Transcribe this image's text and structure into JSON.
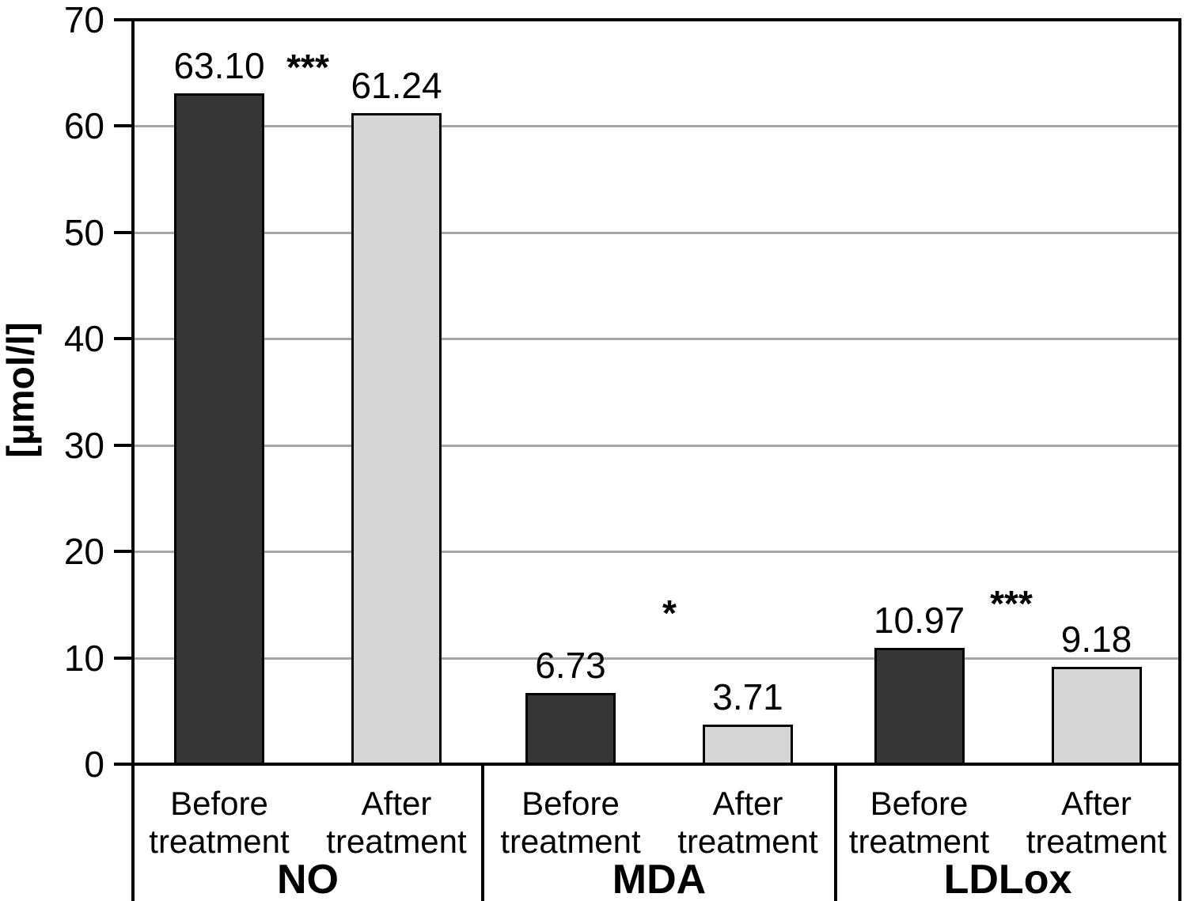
{
  "chart_data": {
    "type": "bar",
    "title": "",
    "ylabel": "[µmol/l]",
    "xlabel": "",
    "ylim": [
      0,
      70
    ],
    "yticks": [
      0,
      10,
      20,
      30,
      40,
      50,
      60,
      70
    ],
    "grid": true,
    "legend_position": "none",
    "categories": [
      "NO",
      "MDA",
      "LDLox"
    ],
    "series": [
      {
        "name": "Before treatment",
        "color": "#363636",
        "values": [
          63.1,
          6.73,
          10.97
        ]
      },
      {
        "name": "After treatment",
        "color": "#d6d6d6",
        "values": [
          61.24,
          3.71,
          9.18
        ]
      }
    ],
    "value_labels": [
      [
        "63.10",
        "61.24"
      ],
      [
        "6.73",
        "3.71"
      ],
      [
        "10.97",
        "9.18"
      ]
    ],
    "significance_markers": [
      {
        "category": "NO",
        "text": "***"
      },
      {
        "category": "MDA",
        "text": "*"
      },
      {
        "category": "LDLox",
        "text": "***"
      }
    ]
  },
  "colors": {
    "bar_before": "#363636",
    "bar_after": "#d6d6d6",
    "bar_border": "#000000",
    "gridline": "#a6a6a6",
    "axis": "#000000",
    "text": "#000000",
    "background": "#ffffff"
  }
}
